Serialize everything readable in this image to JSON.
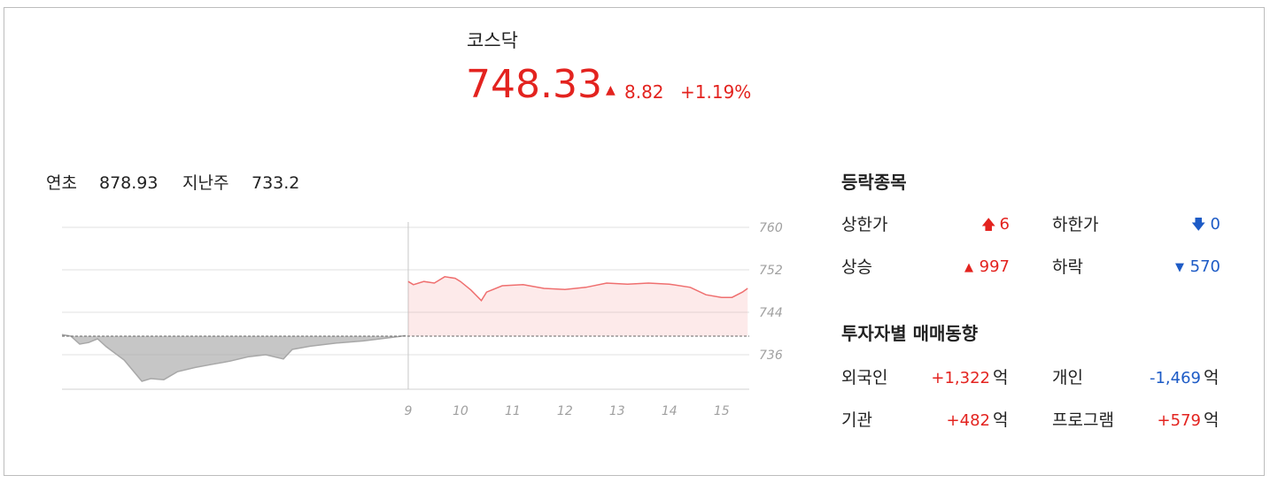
{
  "header": {
    "title": "코스닥",
    "price": "748.33",
    "change": "8.82",
    "change_pct": "+1.19%"
  },
  "summary": [
    {
      "label": "연초",
      "value": "878.93"
    },
    {
      "label": "지난주",
      "value": "733.2"
    }
  ],
  "breadth": {
    "title": "등락종목",
    "items": [
      {
        "label": "상한가",
        "value": "6"
      },
      {
        "label": "하한가",
        "value": "0"
      },
      {
        "label": "상승",
        "value": "997"
      },
      {
        "label": "하락",
        "value": "570"
      }
    ]
  },
  "investors": {
    "title": "투자자별 매매동향",
    "unit": "억",
    "items": [
      {
        "label": "외국인",
        "value": "+1,322"
      },
      {
        "label": "개인",
        "value": "-1,469"
      },
      {
        "label": "기관",
        "value": "+482"
      },
      {
        "label": "프로그램",
        "value": "+579"
      }
    ]
  },
  "chart_data": {
    "type": "line",
    "series": [
      {
        "color": "#a8a8a8",
        "x": [
          2.37,
          2.54,
          2.71,
          2.88,
          3.05,
          3.22,
          3.56,
          3.9,
          4.07,
          4.32,
          4.58,
          4.92,
          5.25,
          5.59,
          5.93,
          6.27,
          6.61,
          6.78,
          7.12,
          7.63,
          8.14,
          8.64,
          8.95
        ],
        "values": [
          739.8,
          739.5,
          738.0,
          738.3,
          739.0,
          737.5,
          735.0,
          731.0,
          731.5,
          731.3,
          732.8,
          733.6,
          734.2,
          734.8,
          735.6,
          736.0,
          735.2,
          737.0,
          737.6,
          738.2,
          738.6,
          739.2,
          739.6
        ]
      },
      {
        "color": "#ef6f6f",
        "x": [
          9.0,
          9.1,
          9.3,
          9.5,
          9.7,
          9.9,
          10.0,
          10.2,
          10.4,
          10.5,
          10.8,
          11.2,
          11.6,
          12.0,
          12.4,
          12.8,
          13.2,
          13.6,
          14.0,
          14.4,
          14.7,
          15.0,
          15.2,
          15.4,
          15.5
        ],
        "values": [
          749.8,
          749.2,
          749.8,
          749.5,
          750.7,
          750.4,
          749.8,
          748.2,
          746.2,
          747.8,
          749.0,
          749.2,
          748.5,
          748.3,
          748.7,
          749.5,
          749.3,
          749.5,
          749.3,
          748.7,
          747.3,
          746.8,
          746.8,
          747.8,
          748.5
        ]
      }
    ],
    "reference_line": 739.5,
    "xlim": [
      2.37,
      15.53
    ],
    "xticks": [
      9,
      10,
      11,
      12,
      13,
      14,
      15
    ],
    "ylim": [
      729.5,
      761
    ],
    "yticks": [
      736,
      744,
      752,
      760
    ],
    "grid": true
  }
}
